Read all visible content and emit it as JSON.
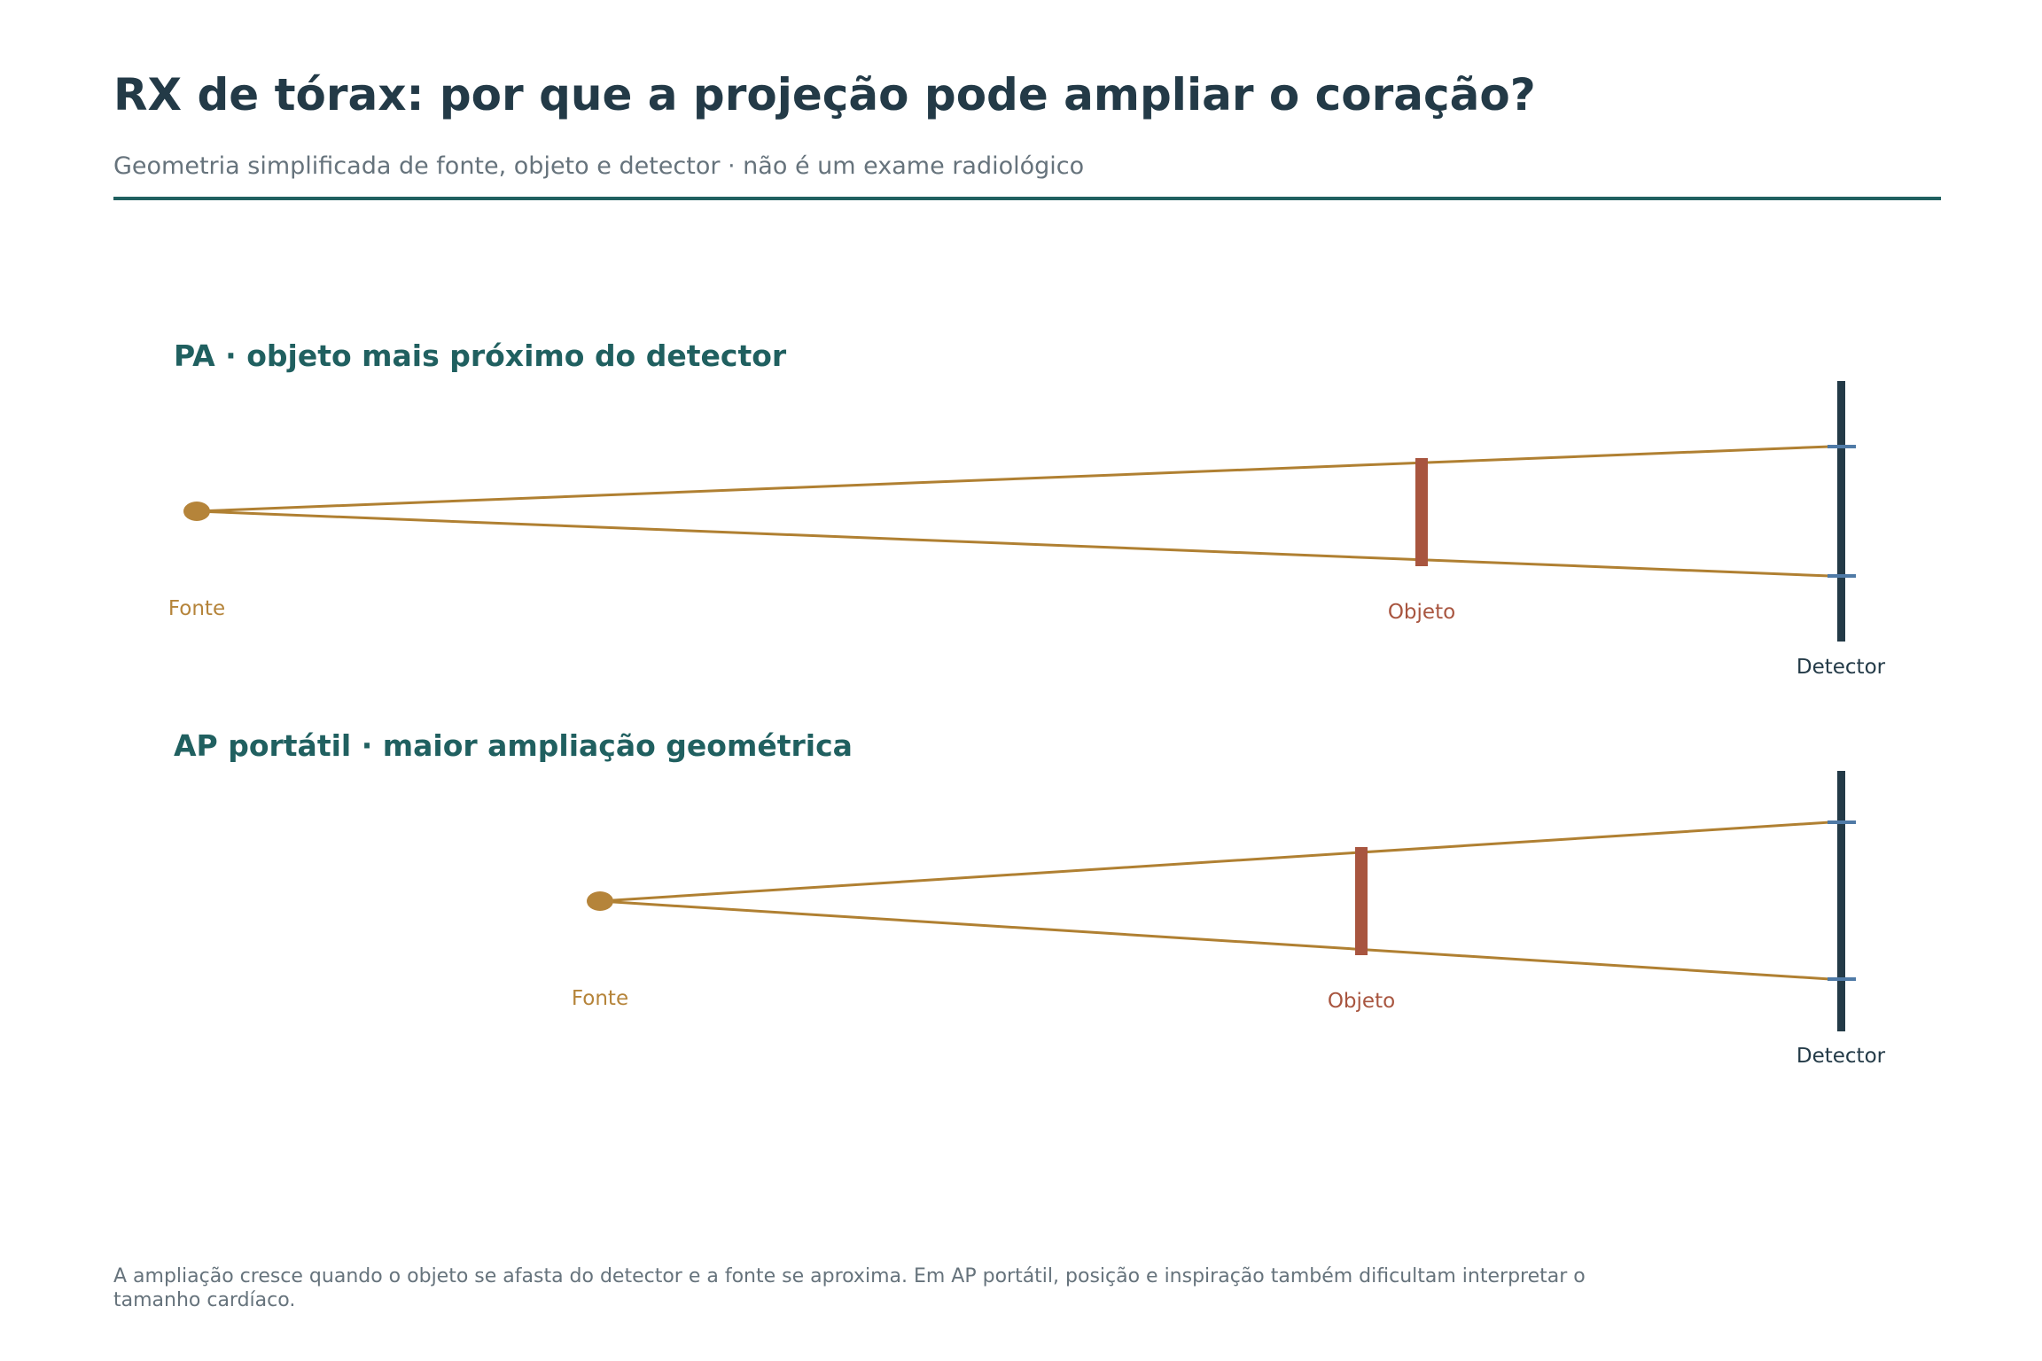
{
  "header": {
    "title": "RX de tórax: por que a projeção pode ampliar o coração?",
    "subtitle": "Geometria simplificada de fonte, objeto e detector · não é um exame radiológico"
  },
  "panels": [
    {
      "title": "PA · objeto mais próximo do detector",
      "source_label": "Fonte",
      "object_label": "Objeto",
      "detector_label": "Detector"
    },
    {
      "title": "AP portátil · maior ampliação geométrica",
      "source_label": "Fonte",
      "object_label": "Objeto",
      "detector_label": "Detector"
    }
  ],
  "footnote": {
    "line1": "A ampliação cresce quando o objeto se afasta do detector e a fonte se aproxima. Em AP portátil, posição e inspiração também dificultam interpretar o",
    "line2": "tamanho cardíaco."
  },
  "colors": {
    "title": "#233a47",
    "panel_title": "#206060",
    "rule": "#206060",
    "source": "#b5843a",
    "ray": "#b08032",
    "object": "#a8553f",
    "detector": "#233a47",
    "image_tick": "#4f7aa6",
    "muted": "#66737c"
  }
}
